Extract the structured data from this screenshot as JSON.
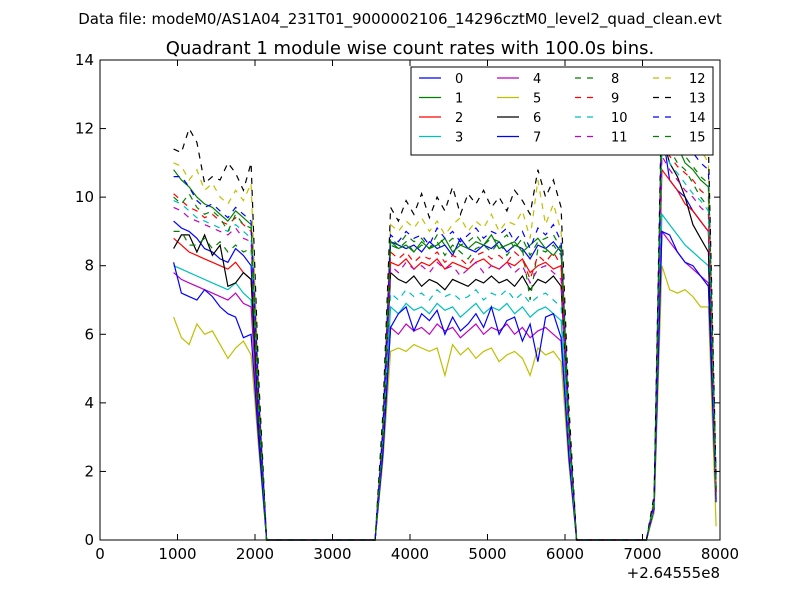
{
  "suptitle": "Data file: modeM0/AS1A04_231T01_9000002106_14296cztM0_level2_quad_clean.evt",
  "chart_data": {
    "type": "line",
    "title": "Quadrant 1 module wise count rates with 100.0s bins.",
    "xlabel": "",
    "ylabel": "",
    "x_offset_label": "+2.64555e8",
    "xlim": [
      0,
      8000
    ],
    "ylim": [
      0,
      14
    ],
    "x_ticks": [
      0,
      1000,
      2000,
      3000,
      4000,
      5000,
      6000,
      7000,
      8000
    ],
    "y_ticks": [
      0,
      2,
      4,
      6,
      8,
      10,
      12,
      14
    ],
    "grid": false,
    "legend_position": "top-right",
    "legend_columns": 4,
    "x": [
      950,
      1050,
      1150,
      1250,
      1350,
      1450,
      1550,
      1650,
      1750,
      1850,
      1950,
      2050,
      2150,
      2250,
      2350,
      2450,
      2550,
      2650,
      2750,
      2850,
      2950,
      3050,
      3150,
      3250,
      3350,
      3450,
      3550,
      3650,
      3750,
      3850,
      3950,
      4050,
      4150,
      4250,
      4350,
      4450,
      4550,
      4650,
      4750,
      4850,
      4950,
      5050,
      5150,
      5250,
      5350,
      5450,
      5550,
      5650,
      5750,
      5850,
      5950,
      6050,
      6150,
      6250,
      6350,
      6450,
      6550,
      6650,
      6750,
      6850,
      6950,
      7050,
      7150,
      7250,
      7350,
      7450,
      7550,
      7650,
      7750,
      7850,
      7950
    ],
    "series": [
      {
        "name": "0",
        "style": "solid",
        "color": "#0000ff",
        "values": [
          9.3,
          9.1,
          9.0,
          8.8,
          8.5,
          8.4,
          8.2,
          8.1,
          8.5,
          8.3,
          8.0,
          3.5,
          0,
          0,
          0,
          0,
          0,
          0,
          0,
          0,
          0,
          0,
          0,
          0,
          0,
          0,
          0,
          3.0,
          8.7,
          8.6,
          8.5,
          8.6,
          8.4,
          8.7,
          8.5,
          8.6,
          8.3,
          8.8,
          8.5,
          8.4,
          8.6,
          8.5,
          8.7,
          8.4,
          8.6,
          8.5,
          8.2,
          8.6,
          8.5,
          8.7,
          8.4,
          3.2,
          0,
          0,
          0,
          0,
          0,
          0,
          0,
          0,
          0,
          0,
          1.0,
          12.0,
          10.5,
          10.2,
          10.0,
          9.6,
          9.3,
          9.0,
          1.5
        ]
      },
      {
        "name": "1",
        "style": "solid",
        "color": "#008000",
        "values": [
          10.8,
          10.5,
          10.3,
          10.0,
          9.8,
          9.7,
          9.5,
          9.3,
          9.6,
          9.4,
          9.2,
          4.0,
          0,
          0,
          0,
          0,
          0,
          0,
          0,
          0,
          0,
          0,
          0,
          0,
          0,
          0,
          0,
          3.2,
          8.7,
          8.5,
          8.6,
          8.4,
          8.7,
          8.5,
          8.6,
          8.8,
          8.4,
          8.6,
          8.5,
          8.7,
          8.6,
          8.9,
          8.5,
          8.6,
          8.7,
          8.4,
          8.6,
          8.8,
          8.5,
          8.3,
          8.6,
          3.4,
          0,
          0,
          0,
          0,
          0,
          0,
          0,
          0,
          0,
          0,
          1.1,
          12.6,
          11.8,
          11.5,
          11.0,
          10.8,
          10.5,
          10.3,
          1.6
        ]
      },
      {
        "name": "2",
        "style": "solid",
        "color": "#ff0000",
        "values": [
          8.8,
          8.6,
          8.4,
          8.3,
          8.2,
          8.1,
          8.0,
          7.9,
          8.1,
          7.8,
          7.6,
          3.3,
          0,
          0,
          0,
          0,
          0,
          0,
          0,
          0,
          0,
          0,
          0,
          0,
          0,
          0,
          0,
          2.9,
          8.1,
          8.0,
          8.2,
          7.9,
          8.1,
          8.0,
          8.2,
          7.9,
          8.1,
          8.0,
          7.9,
          8.1,
          8.2,
          8.0,
          7.9,
          8.1,
          8.0,
          8.2,
          7.8,
          8.0,
          8.1,
          7.9,
          8.0,
          3.0,
          0,
          0,
          0,
          0,
          0,
          0,
          0,
          0,
          0,
          0,
          1.0,
          10.8,
          10.5,
          10.2,
          9.8,
          9.6,
          9.3,
          9.0,
          1.4
        ]
      },
      {
        "name": "3",
        "style": "solid",
        "color": "#00bfbf",
        "values": [
          8.0,
          7.9,
          7.8,
          7.7,
          7.6,
          7.5,
          7.4,
          7.3,
          7.5,
          7.2,
          7.0,
          3.1,
          0,
          0,
          0,
          0,
          0,
          0,
          0,
          0,
          0,
          0,
          0,
          0,
          0,
          0,
          0,
          2.7,
          6.8,
          6.6,
          6.9,
          6.7,
          6.8,
          6.6,
          6.9,
          6.7,
          6.8,
          6.5,
          6.7,
          6.9,
          6.6,
          6.8,
          6.7,
          6.9,
          6.6,
          6.8,
          6.5,
          6.7,
          6.8,
          6.6,
          6.4,
          2.8,
          0,
          0,
          0,
          0,
          0,
          0,
          0,
          0,
          0,
          0,
          1.0,
          9.5,
          9.2,
          8.9,
          8.6,
          8.4,
          8.2,
          8.0,
          1.3
        ]
      },
      {
        "name": "4",
        "style": "solid",
        "color": "#bf00bf",
        "values": [
          7.8,
          7.6,
          7.5,
          7.4,
          7.3,
          7.2,
          7.1,
          7.0,
          7.2,
          6.9,
          6.8,
          3.0,
          0,
          0,
          0,
          0,
          0,
          0,
          0,
          0,
          0,
          0,
          0,
          0,
          0,
          0,
          0,
          2.6,
          6.2,
          6.0,
          6.3,
          6.1,
          6.2,
          6.0,
          6.3,
          6.1,
          6.2,
          5.9,
          6.1,
          6.3,
          6.0,
          6.2,
          6.1,
          6.3,
          6.0,
          6.2,
          5.9,
          6.1,
          6.2,
          6.0,
          5.8,
          2.5,
          0,
          0,
          0,
          0,
          0,
          0,
          0,
          0,
          0,
          0,
          0.9,
          9.0,
          8.7,
          8.4,
          8.1,
          7.9,
          7.7,
          7.5,
          1.2
        ]
      },
      {
        "name": "5",
        "style": "solid",
        "color": "#bfbf00",
        "values": [
          6.5,
          5.9,
          5.7,
          6.3,
          6.0,
          6.1,
          5.7,
          5.3,
          5.6,
          5.8,
          5.4,
          2.6,
          0,
          0,
          0,
          0,
          0,
          0,
          0,
          0,
          0,
          0,
          0,
          0,
          0,
          0,
          0,
          2.3,
          5.5,
          5.6,
          5.5,
          5.7,
          5.6,
          5.5,
          5.6,
          4.8,
          5.7,
          5.4,
          5.6,
          5.3,
          5.5,
          5.6,
          5.2,
          5.4,
          5.5,
          5.3,
          4.8,
          5.6,
          5.4,
          5.5,
          5.2,
          2.2,
          0,
          0,
          0,
          0,
          0,
          0,
          0,
          0,
          0,
          0,
          0.8,
          8.0,
          7.3,
          7.2,
          7.3,
          7.1,
          6.8,
          6.8,
          0.4
        ]
      },
      {
        "name": "6",
        "style": "solid",
        "color": "#000000",
        "values": [
          8.5,
          8.9,
          8.9,
          8.4,
          8.9,
          8.3,
          8.6,
          7.4,
          7.5,
          7.8,
          7.6,
          3.4,
          0,
          0,
          0,
          0,
          0,
          0,
          0,
          0,
          0,
          0,
          0,
          0,
          0,
          0,
          0,
          2.8,
          7.8,
          7.6,
          7.5,
          7.7,
          7.4,
          7.6,
          7.5,
          7.3,
          7.6,
          7.5,
          7.4,
          7.6,
          7.5,
          7.7,
          7.5,
          7.6,
          7.4,
          7.7,
          7.3,
          7.6,
          7.5,
          7.7,
          7.4,
          3.1,
          0,
          0,
          0,
          0,
          0,
          0,
          0,
          0,
          0,
          0,
          1.0,
          11.8,
          11.0,
          10.6,
          10.0,
          9.2,
          8.8,
          8.4,
          1.4
        ]
      },
      {
        "name": "7",
        "style": "solid",
        "color": "#0000ff",
        "values": [
          8.1,
          7.2,
          7.1,
          7.0,
          7.3,
          7.1,
          6.8,
          6.6,
          6.5,
          5.9,
          6.0,
          2.8,
          0,
          0,
          0,
          0,
          0,
          0,
          0,
          0,
          0,
          0,
          0,
          0,
          0,
          0,
          0,
          2.5,
          6.2,
          6.6,
          6.8,
          6.1,
          6.6,
          6.4,
          6.7,
          6.0,
          6.5,
          6.1,
          6.3,
          6.6,
          6.2,
          6.8,
          6.0,
          6.4,
          6.5,
          5.8,
          6.3,
          5.2,
          6.5,
          6.6,
          5.9,
          2.4,
          0,
          0,
          0,
          0,
          0,
          0,
          0,
          0,
          0,
          0,
          0.9,
          9.0,
          8.9,
          8.4,
          8.1,
          8.0,
          7.7,
          7.4,
          1.1
        ]
      },
      {
        "name": "8",
        "style": "dashed",
        "color": "#008000",
        "values": [
          9.0,
          9.0,
          8.6,
          8.6,
          8.8,
          8.5,
          8.7,
          8.4,
          8.6,
          8.4,
          8.5,
          3.6,
          0,
          0,
          0,
          0,
          0,
          0,
          0,
          0,
          0,
          0,
          0,
          0,
          0,
          0,
          0,
          3.0,
          8.6,
          8.5,
          8.7,
          8.4,
          8.6,
          8.5,
          8.7,
          8.3,
          8.6,
          8.4,
          8.2,
          8.5,
          8.6,
          8.4,
          8.7,
          8.3,
          8.6,
          8.5,
          7.0,
          8.5,
          8.4,
          8.6,
          8.3,
          3.2,
          0,
          0,
          0,
          0,
          0,
          0,
          0,
          0,
          0,
          0,
          1.1,
          12.4,
          11.4,
          11.0,
          10.8,
          10.4,
          10.0,
          9.7,
          1.5
        ]
      },
      {
        "name": "9",
        "style": "dashed",
        "color": "#ff0000",
        "values": [
          10.1,
          9.9,
          9.7,
          9.6,
          9.4,
          9.5,
          9.3,
          9.2,
          9.4,
          9.2,
          9.0,
          3.9,
          0,
          0,
          0,
          0,
          0,
          0,
          0,
          0,
          0,
          0,
          0,
          0,
          0,
          0,
          0,
          3.1,
          8.4,
          8.2,
          8.4,
          8.1,
          8.3,
          8.2,
          8.4,
          8.1,
          8.3,
          8.2,
          8.0,
          8.3,
          8.4,
          8.2,
          8.3,
          8.1,
          8.4,
          8.2,
          7.6,
          8.3,
          8.1,
          8.4,
          8.0,
          3.1,
          0,
          0,
          0,
          0,
          0,
          0,
          0,
          0,
          0,
          0,
          1.1,
          11.6,
          11.2,
          10.9,
          10.7,
          10.5,
          10.2,
          10.0,
          1.5
        ]
      },
      {
        "name": "10",
        "style": "dashed",
        "color": "#00bfbf",
        "values": [
          9.9,
          9.8,
          9.6,
          9.4,
          9.3,
          9.2,
          9.1,
          9.0,
          9.2,
          9.0,
          8.8,
          3.8,
          0,
          0,
          0,
          0,
          0,
          0,
          0,
          0,
          0,
          0,
          0,
          0,
          0,
          0,
          0,
          3.0,
          7.2,
          7.0,
          7.3,
          7.1,
          7.2,
          7.0,
          7.3,
          7.1,
          7.2,
          7.0,
          7.1,
          7.3,
          7.0,
          7.2,
          7.1,
          7.3,
          7.0,
          7.2,
          6.9,
          7.1,
          7.2,
          7.0,
          6.8,
          2.9,
          0,
          0,
          0,
          0,
          0,
          0,
          0,
          0,
          0,
          0,
          1.0,
          11.4,
          11.0,
          10.7,
          10.4,
          10.1,
          9.9,
          9.6,
          1.4
        ]
      },
      {
        "name": "11",
        "style": "dashed",
        "color": "#bf00bf",
        "values": [
          9.7,
          9.6,
          9.4,
          9.3,
          9.2,
          9.1,
          9.0,
          8.9,
          9.1,
          8.8,
          8.7,
          3.7,
          0,
          0,
          0,
          0,
          0,
          0,
          0,
          0,
          0,
          0,
          0,
          0,
          0,
          0,
          0,
          2.9,
          8.0,
          7.8,
          8.1,
          7.9,
          8.0,
          7.8,
          8.1,
          7.9,
          8.0,
          7.7,
          7.9,
          8.1,
          7.8,
          8.0,
          7.9,
          8.1,
          7.8,
          8.0,
          7.5,
          7.9,
          8.0,
          7.8,
          7.6,
          3.0,
          0,
          0,
          0,
          0,
          0,
          0,
          0,
          0,
          0,
          0,
          1.0,
          11.2,
          10.8,
          10.5,
          10.2,
          10.0,
          9.7,
          9.5,
          1.4
        ]
      },
      {
        "name": "12",
        "style": "dashed",
        "color": "#bfbf00",
        "values": [
          11.0,
          10.9,
          10.5,
          10.8,
          10.2,
          10.4,
          10.0,
          9.8,
          10.2,
          9.9,
          10.4,
          4.3,
          0,
          0,
          0,
          0,
          0,
          0,
          0,
          0,
          0,
          0,
          0,
          0,
          0,
          0,
          0,
          3.4,
          9.2,
          9.0,
          9.3,
          9.1,
          9.4,
          9.0,
          9.3,
          8.9,
          9.2,
          9.4,
          9.0,
          9.3,
          9.1,
          9.5,
          9.0,
          9.3,
          9.2,
          9.6,
          8.8,
          10.5,
          9.2,
          9.8,
          9.0,
          3.6,
          0,
          0,
          0,
          0,
          0,
          0,
          0,
          0,
          0,
          0,
          1.2,
          13.0,
          12.6,
          12.2,
          12.0,
          11.8,
          11.4,
          11.0,
          1.7
        ]
      },
      {
        "name": "13",
        "style": "dashed",
        "color": "#000000",
        "values": [
          11.4,
          11.3,
          12.0,
          11.6,
          10.4,
          10.6,
          10.5,
          11.0,
          10.7,
          10.2,
          11.0,
          4.6,
          0,
          0,
          0,
          0,
          0,
          0,
          0,
          0,
          0,
          0,
          0,
          0,
          0,
          0,
          0,
          3.7,
          9.7,
          9.3,
          9.9,
          9.5,
          10.1,
          9.4,
          10.0,
          9.6,
          10.3,
          9.5,
          10.1,
          9.8,
          10.2,
          9.7,
          10.0,
          9.6,
          10.2,
          9.9,
          9.5,
          10.8,
          10.0,
          10.5,
          9.7,
          3.9,
          0,
          0,
          0,
          0,
          0,
          0,
          0,
          0,
          0,
          0,
          1.3,
          13.3,
          12.9,
          12.5,
          12.8,
          12.1,
          11.8,
          11.5,
          1.8
        ]
      },
      {
        "name": "14",
        "style": "dashed",
        "color": "#0000ff",
        "values": [
          10.6,
          10.6,
          10.3,
          9.9,
          9.7,
          9.8,
          9.6,
          9.4,
          9.7,
          9.5,
          9.3,
          4.0,
          0,
          0,
          0,
          0,
          0,
          0,
          0,
          0,
          0,
          0,
          0,
          0,
          0,
          0,
          0,
          3.2,
          8.9,
          8.7,
          9.0,
          8.8,
          8.9,
          8.6,
          9.1,
          8.8,
          9.0,
          8.7,
          8.9,
          9.1,
          8.8,
          9.0,
          8.9,
          9.1,
          8.7,
          9.0,
          8.5,
          9.1,
          8.9,
          9.2,
          8.7,
          3.4,
          0,
          0,
          0,
          0,
          0,
          0,
          0,
          0,
          0,
          0,
          1.1,
          12.7,
          12.2,
          11.9,
          11.6,
          11.3,
          11.0,
          10.8,
          1.6
        ]
      },
      {
        "name": "15",
        "style": "dashed",
        "color": "#008000",
        "values": [
          10.0,
          9.8,
          10.1,
          9.7,
          9.5,
          9.6,
          9.4,
          9.0,
          9.5,
          9.2,
          9.1,
          3.9,
          0,
          0,
          0,
          0,
          0,
          0,
          0,
          0,
          0,
          0,
          0,
          0,
          0,
          0,
          0,
          3.1,
          8.8,
          8.6,
          8.9,
          8.7,
          8.8,
          8.5,
          8.9,
          8.6,
          8.8,
          8.6,
          8.7,
          8.9,
          8.6,
          8.8,
          8.7,
          8.9,
          8.5,
          8.8,
          8.3,
          8.7,
          8.8,
          8.9,
          8.5,
          3.3,
          0,
          0,
          0,
          0,
          0,
          0,
          0,
          0,
          0,
          0,
          1.1,
          12.2,
          11.8,
          11.5,
          11.2,
          10.9,
          10.6,
          10.4,
          1.5
        ]
      }
    ]
  }
}
